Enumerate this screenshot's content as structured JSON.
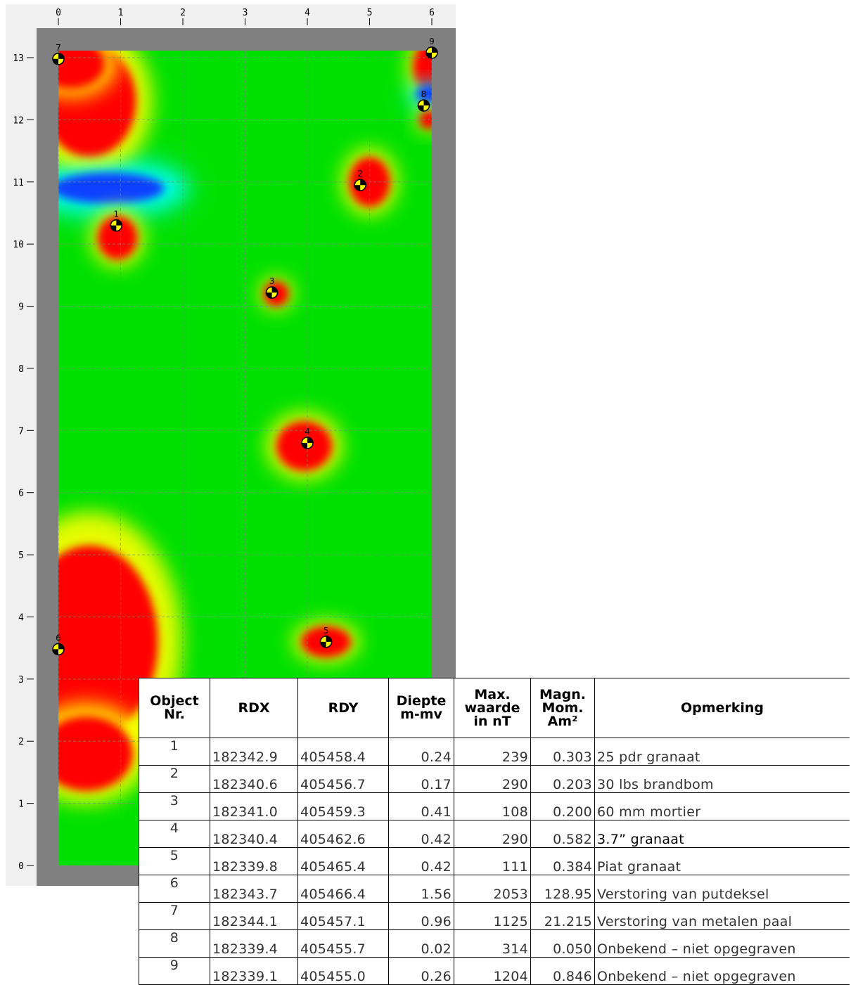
{
  "chart_data": {
    "type": "heatmap",
    "xlim": [
      0,
      6
    ],
    "ylim": [
      0,
      13
    ],
    "x_ticks": [
      0,
      1,
      2,
      3,
      4,
      5,
      6
    ],
    "y_ticks": [
      0,
      1,
      2,
      3,
      4,
      5,
      6,
      7,
      8,
      9,
      10,
      11,
      12,
      13
    ],
    "grid": true,
    "colors": {
      "background": "#00e000",
      "positive": "#ff0000",
      "warm": "#ffff00",
      "negative": "#1040ff",
      "cool": "#00ffff",
      "frame": "#808080"
    },
    "anomalies": [
      {
        "kind": "positive",
        "x": 0.5,
        "y": 12.3,
        "rx": 0.75,
        "ry": 0.9
      },
      {
        "kind": "positive",
        "x": 0.2,
        "y": 12.9,
        "rx": 0.55,
        "ry": 0.4
      },
      {
        "kind": "negative",
        "x": 0.8,
        "y": 10.9,
        "rx": 0.9,
        "ry": 0.25
      },
      {
        "kind": "positive",
        "x": 0.95,
        "y": 10.1,
        "rx": 0.32,
        "ry": 0.35
      },
      {
        "kind": "positive",
        "x": 5.0,
        "y": 11.0,
        "rx": 0.33,
        "ry": 0.4
      },
      {
        "kind": "positive",
        "x": 5.95,
        "y": 12.85,
        "rx": 0.25,
        "ry": 0.4
      },
      {
        "kind": "negative",
        "x": 5.95,
        "y": 12.4,
        "rx": 0.2,
        "ry": 0.15
      },
      {
        "kind": "positive",
        "x": 5.95,
        "y": 12.0,
        "rx": 0.15,
        "ry": 0.15
      },
      {
        "kind": "positive",
        "x": 3.5,
        "y": 9.2,
        "rx": 0.2,
        "ry": 0.2
      },
      {
        "kind": "positive",
        "x": 3.95,
        "y": 6.75,
        "rx": 0.45,
        "ry": 0.4
      },
      {
        "kind": "positive",
        "x": 4.3,
        "y": 3.6,
        "rx": 0.4,
        "ry": 0.25
      },
      {
        "kind": "positive",
        "x": 0.5,
        "y": 3.6,
        "rx": 1.1,
        "ry": 1.55
      },
      {
        "kind": "positive",
        "x": 0.45,
        "y": 1.8,
        "rx": 0.75,
        "ry": 0.6
      }
    ],
    "markers": [
      {
        "label": "1",
        "x": 0.93,
        "y": 10.3
      },
      {
        "label": "2",
        "x": 4.85,
        "y": 10.95
      },
      {
        "label": "3",
        "x": 3.43,
        "y": 9.22
      },
      {
        "label": "4",
        "x": 4.0,
        "y": 6.8
      },
      {
        "label": "5",
        "x": 4.3,
        "y": 3.6
      },
      {
        "label": "6",
        "x": 0.0,
        "y": 3.48
      },
      {
        "label": "7",
        "x": 0.0,
        "y": 12.98
      },
      {
        "label": "8",
        "x": 5.87,
        "y": 12.23
      },
      {
        "label": "9",
        "x": 6.0,
        "y": 13.08
      }
    ]
  },
  "table": {
    "headers": {
      "nr": [
        "Object",
        "Nr."
      ],
      "rdx": [
        "RDX"
      ],
      "rdy": [
        "RDY"
      ],
      "diepte": [
        "Diepte",
        "m-mv"
      ],
      "max": [
        "Max.",
        "waarde",
        "in nT"
      ],
      "magn": [
        "Magn.",
        "Mom.",
        "Am²"
      ],
      "opm": [
        "Opmerking"
      ]
    },
    "rows": [
      {
        "nr": "1",
        "rdx": "182342.9",
        "rdy": "405458.4",
        "diepte": "0.24",
        "max": "239",
        "magn": "0.303",
        "opm": "25 pdr granaat"
      },
      {
        "nr": "2",
        "rdx": "182340.6",
        "rdy": "405456.7",
        "diepte": "0.17",
        "max": "290",
        "magn": "0.203",
        "opm": "30 lbs brandbom"
      },
      {
        "nr": "3",
        "rdx": "182341.0",
        "rdy": "405459.3",
        "diepte": "0.41",
        "max": "108",
        "magn": "0.200",
        "opm": "60 mm mortier"
      },
      {
        "nr": "4",
        "rdx": "182340.4",
        "rdy": "405462.6",
        "diepte": "0.42",
        "max": "290",
        "magn": "0.582",
        "opm": "3.7” granaat"
      },
      {
        "nr": "5",
        "rdx": "182339.8",
        "rdy": "405465.4",
        "diepte": "0.42",
        "max": "111",
        "magn": "0.384",
        "opm": "Piat granaat"
      },
      {
        "nr": "6",
        "rdx": "182343.7",
        "rdy": "405466.4",
        "diepte": "1.56",
        "max": "2053",
        "magn": "128.95",
        "opm": "Verstoring van putdeksel"
      },
      {
        "nr": "7",
        "rdx": "182344.1",
        "rdy": "405457.1",
        "diepte": "0.96",
        "max": "1125",
        "magn": "21.215",
        "opm": "Verstoring van metalen paal"
      },
      {
        "nr": "8",
        "rdx": "182339.4",
        "rdy": "405455.7",
        "diepte": "0.02",
        "max": "314",
        "magn": "0.050",
        "opm": "Onbekend – niet opgegraven"
      },
      {
        "nr": "9",
        "rdx": "182339.1",
        "rdy": "405455.0",
        "diepte": "0.26",
        "max": "1204",
        "magn": "0.846",
        "opm": "Onbekend – niet opgegraven"
      }
    ]
  }
}
